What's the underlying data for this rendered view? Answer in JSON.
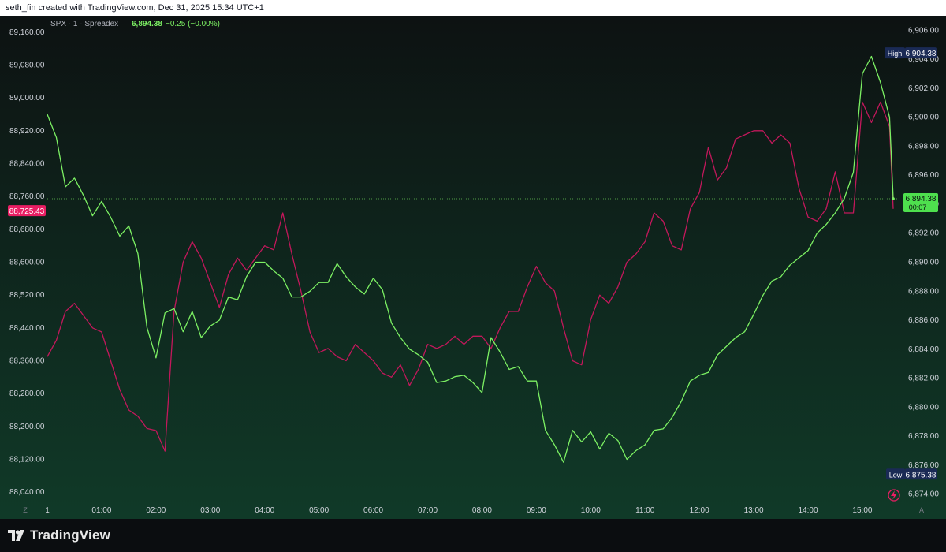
{
  "attribution": "seth_fin created with TradingView.com, Dec 31, 2025 15:34 UTC+1",
  "legend": {
    "symbol": "SPX · 1 · Spreadex",
    "price": "6,894.38",
    "change": "−0.25 (−0.00%)"
  },
  "footer": {
    "brand": "TradingView"
  },
  "colors": {
    "green_series": "#7cf063",
    "pink_series": "#c2185b",
    "background_top": "#0d1212",
    "background_bottom": "#103a28",
    "axis_text": "#d1d4dc",
    "high_low_badge": "#1a2a55",
    "last_price_badge": "#4ee04e",
    "left_marker_badge": "#e91e63"
  },
  "icons": [
    "timezone-z-icon",
    "auto-scale-a-icon",
    "bolt-icon",
    "tradingview-logo-icon"
  ],
  "chart_data": {
    "type": "line",
    "x_ticks": [
      "1",
      "01:00",
      "02:00",
      "03:00",
      "04:00",
      "05:00",
      "06:00",
      "07:00",
      "08:00",
      "09:00",
      "10:00",
      "11:00",
      "12:00",
      "13:00",
      "14:00",
      "15:00"
    ],
    "left_axis": {
      "ticks": [
        "89,160.00",
        "89,080.00",
        "89,000.00",
        "88,920.00",
        "88,840.00",
        "88,760.00",
        "88,680.00",
        "88,600.00",
        "88,520.00",
        "88,440.00",
        "88,360.00",
        "88,280.00",
        "88,200.00",
        "88,120.00",
        "88,040.00"
      ],
      "range": [
        88000,
        89200
      ],
      "marker": "88,725.43"
    },
    "right_axis": {
      "ticks": [
        "6,906.00",
        "6,904.00",
        "6,902.00",
        "6,900.00",
        "6,898.00",
        "6,896.00",
        "6,894.00",
        "6,892.00",
        "6,890.00",
        "6,888.00",
        "6,886.00",
        "6,884.00",
        "6,882.00",
        "6,880.00",
        "6,878.00",
        "6,876.00",
        "6,874.00"
      ],
      "range": [
        6873,
        6907
      ],
      "high_label": "High",
      "high_value": "6,904.38",
      "low_label": "Low",
      "low_value": "6,875.38",
      "last_value": "6,894.38",
      "countdown": "00:07"
    },
    "series": [
      {
        "axis": "right",
        "x": [
          "00:00",
          "00:10",
          "00:20",
          "00:30",
          "00:40",
          "00:50",
          "01:00",
          "01:10",
          "01:20",
          "01:30",
          "01:40",
          "01:50",
          "02:00",
          "02:10",
          "02:20",
          "02:30",
          "02:40",
          "02:50",
          "03:00",
          "03:10",
          "03:20",
          "03:30",
          "03:40",
          "03:50",
          "04:00",
          "04:10",
          "04:20",
          "04:30",
          "04:40",
          "04:50",
          "05:00",
          "05:10",
          "05:20",
          "05:30",
          "05:40",
          "05:50",
          "06:00",
          "06:10",
          "06:20",
          "06:30",
          "06:40",
          "06:50",
          "07:00",
          "07:10",
          "07:20",
          "07:30",
          "07:40",
          "07:50",
          "08:00",
          "08:10",
          "08:20",
          "08:30",
          "08:40",
          "08:50",
          "09:00",
          "09:10",
          "09:20",
          "09:30",
          "09:40",
          "09:50",
          "10:00",
          "10:10",
          "10:20",
          "10:30",
          "10:40",
          "10:50",
          "11:00",
          "11:10",
          "11:20",
          "11:30",
          "11:40",
          "11:50",
          "12:00",
          "12:10",
          "12:20",
          "12:30",
          "12:40",
          "12:50",
          "13:00",
          "13:10",
          "13:20",
          "13:30",
          "13:40",
          "13:50",
          "14:00",
          "14:10",
          "14:20",
          "14:30",
          "14:40",
          "14:50",
          "15:00",
          "15:10",
          "15:20",
          "15:30",
          "15:34"
        ],
        "values": [
          6900.2,
          6898.6,
          6895.2,
          6895.8,
          6894.6,
          6893.2,
          6894.2,
          6893.1,
          6891.8,
          6892.5,
          6890.6,
          6885.5,
          6883.4,
          6886.5,
          6886.8,
          6885.2,
          6886.6,
          6884.8,
          6885.6,
          6886.0,
          6887.6,
          6887.4,
          6889.0,
          6890.0,
          6890.0,
          6889.4,
          6888.9,
          6887.6,
          6887.6,
          6888.0,
          6888.6,
          6888.6,
          6889.9,
          6889.0,
          6888.3,
          6887.8,
          6888.9,
          6888.1,
          6885.8,
          6884.8,
          6884.0,
          6883.6,
          6883.1,
          6881.7,
          6881.8,
          6882.1,
          6882.2,
          6881.7,
          6881.0,
          6884.8,
          6883.8,
          6882.6,
          6882.8,
          6881.8,
          6881.8,
          6878.4,
          6877.4,
          6876.2,
          6878.4,
          6877.6,
          6878.3,
          6877.1,
          6878.2,
          6877.7,
          6876.4,
          6877.0,
          6877.4,
          6878.4,
          6878.5,
          6879.3,
          6880.4,
          6881.8,
          6882.2,
          6882.4,
          6883.6,
          6884.2,
          6884.8,
          6885.2,
          6886.4,
          6887.7,
          6888.7,
          6889.0,
          6889.8,
          6890.3,
          6890.8,
          6892.0,
          6892.6,
          6893.4,
          6894.4,
          6896.2,
          6903.0,
          6904.2,
          6902.4,
          6900.0,
          6894.4
        ]
      },
      {
        "axis": "left",
        "x": [
          "00:00",
          "00:10",
          "00:20",
          "00:30",
          "00:40",
          "00:50",
          "01:00",
          "01:10",
          "01:20",
          "01:30",
          "01:40",
          "01:50",
          "02:00",
          "02:10",
          "02:20",
          "02:30",
          "02:40",
          "02:50",
          "03:00",
          "03:10",
          "03:20",
          "03:30",
          "03:40",
          "03:50",
          "04:00",
          "04:10",
          "04:20",
          "04:30",
          "04:40",
          "04:50",
          "05:00",
          "05:10",
          "05:20",
          "05:30",
          "05:40",
          "05:50",
          "06:00",
          "06:10",
          "06:20",
          "06:30",
          "06:40",
          "06:50",
          "07:00",
          "07:10",
          "07:20",
          "07:30",
          "07:40",
          "07:50",
          "08:00",
          "08:10",
          "08:20",
          "08:30",
          "08:40",
          "08:50",
          "09:00",
          "09:10",
          "09:20",
          "09:30",
          "09:40",
          "09:50",
          "10:00",
          "10:10",
          "10:20",
          "10:30",
          "10:40",
          "10:50",
          "11:00",
          "11:10",
          "11:20",
          "11:30",
          "11:40",
          "11:50",
          "12:00",
          "12:10",
          "12:20",
          "12:30",
          "12:40",
          "12:50",
          "13:00",
          "13:10",
          "13:20",
          "13:30",
          "13:40",
          "13:50",
          "14:00",
          "14:10",
          "14:20",
          "14:30",
          "14:40",
          "14:50",
          "15:00",
          "15:10",
          "15:20",
          "15:30",
          "15:34"
        ],
        "values": [
          88370,
          88410,
          88480,
          88500,
          88470,
          88440,
          88430,
          88360,
          88290,
          88240,
          88225,
          88195,
          88190,
          88140,
          88480,
          88600,
          88650,
          88610,
          88550,
          88490,
          88570,
          88610,
          88580,
          88610,
          88640,
          88630,
          88720,
          88620,
          88530,
          88430,
          88380,
          88390,
          88370,
          88360,
          88400,
          88380,
          88360,
          88330,
          88320,
          88350,
          88300,
          88340,
          88400,
          88390,
          88400,
          88420,
          88400,
          88420,
          88420,
          88390,
          88440,
          88480,
          88480,
          88540,
          88590,
          88550,
          88530,
          88440,
          88360,
          88350,
          88460,
          88520,
          88500,
          88540,
          88600,
          88620,
          88650,
          88720,
          88700,
          88640,
          88630,
          88730,
          88770,
          88880,
          88800,
          88830,
          88900,
          88910,
          88920,
          88920,
          88890,
          88910,
          88890,
          88780,
          88710,
          88700,
          88730,
          88820,
          88720,
          88720,
          88990,
          88940,
          88990,
          88930,
          88730
        ]
      }
    ]
  }
}
